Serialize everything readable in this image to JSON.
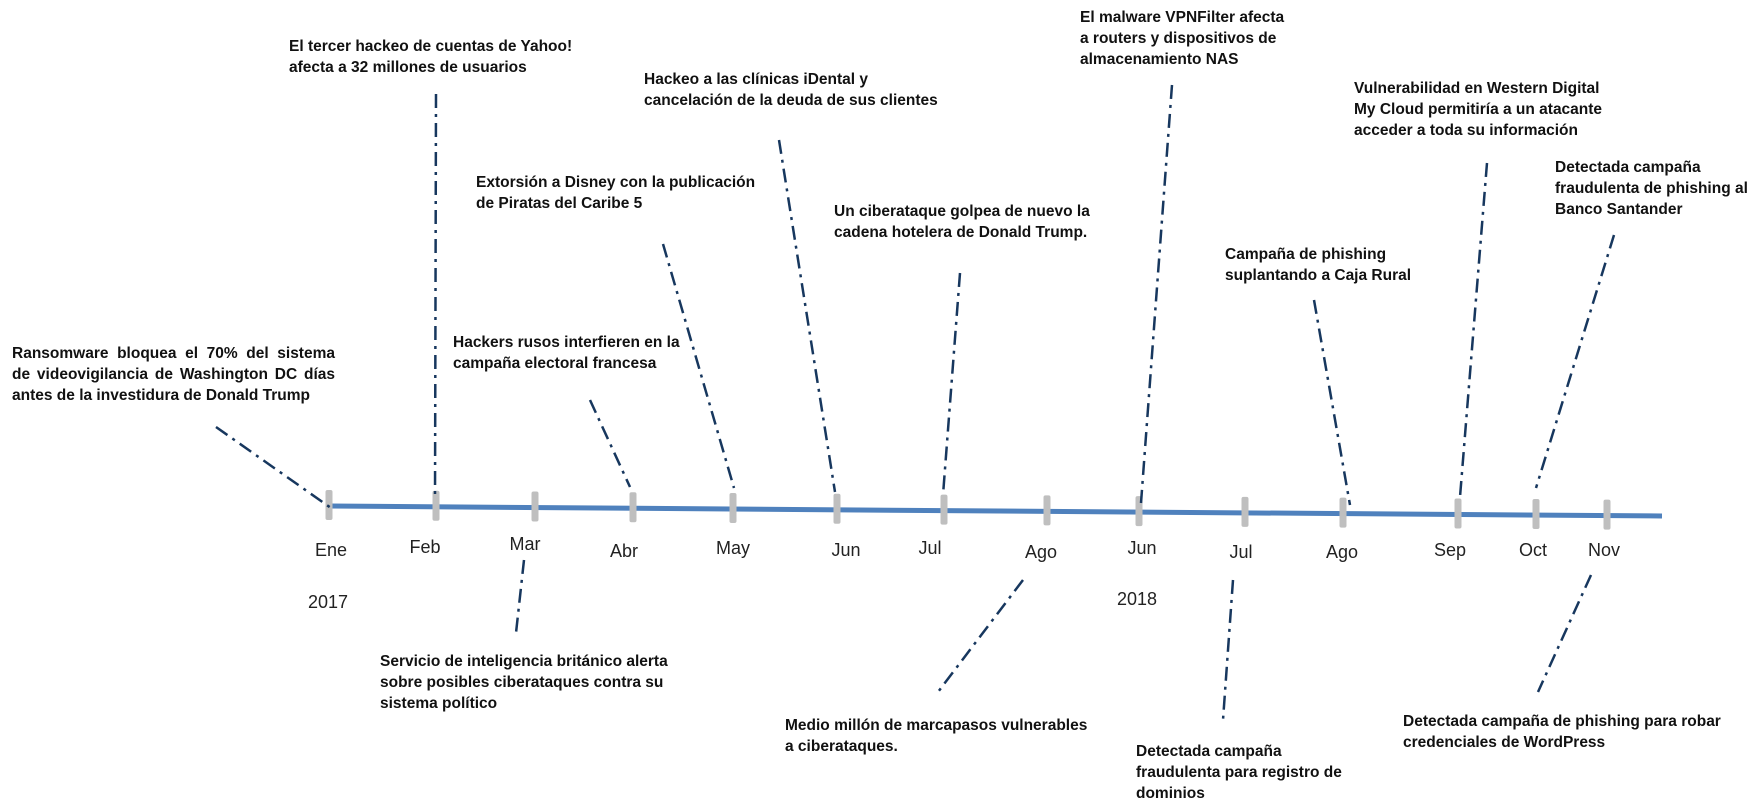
{
  "timeline": {
    "axis_color": "#4f81bd",
    "tick_color": "#bfbfbf",
    "connector_color": "#17375e",
    "months": [
      "Ene",
      "Feb",
      "Mar",
      "Abr",
      "May",
      "Jun",
      "Jul",
      "Ago",
      "Jun",
      "Jul",
      "Ago",
      "Sep",
      "Oct",
      "Nov"
    ],
    "years": [
      "2017",
      "2018"
    ],
    "events": [
      {
        "id": "washington-cctv",
        "text": "Ransomware bloquea el 70% del sistema de videovigilancia de Washington DC días antes de la investidura de Donald Trump"
      },
      {
        "id": "yahoo",
        "text": "El tercer hackeo de cuentas de Yahoo!\nafecta a 32 millones de usuarios"
      },
      {
        "id": "uk-intel",
        "text": "Servicio de inteligencia británico alerta\nsobre posibles ciberataques contra su\nsistema político"
      },
      {
        "id": "russian-hackers",
        "text": "Hackers rusos interfieren en la\ncampaña electoral francesa"
      },
      {
        "id": "disney",
        "text": "Extorsión a Disney con la publicación\nde Piratas del Caribe 5"
      },
      {
        "id": "idental",
        "text": "Hackeo a las clínicas iDental y\ncancelación de la deuda de sus clientes"
      },
      {
        "id": "trump-hotels",
        "text": "Un ciberataque golpea de nuevo la\ncadena hotelera de Donald Trump."
      },
      {
        "id": "pacemakers",
        "text": "Medio millón de marcapasos vulnerables\na ciberataques."
      },
      {
        "id": "vpnfilter",
        "text": "El malware VPNFilter afecta\na routers y dispositivos de\nalmacenamiento NAS"
      },
      {
        "id": "domains",
        "text": "Detectada campaña\nfraudulenta para registro de\ndominios"
      },
      {
        "id": "caja-rural",
        "text": "Campaña de phishing\nsuplantando a Caja Rural"
      },
      {
        "id": "western-digital",
        "text": "Vulnerabilidad en Western Digital\nMy Cloud permitiría a un atacante\nacceder a toda su información"
      },
      {
        "id": "santander",
        "text": "Detectada campaña\nfraudulenta de phishing al\nBanco Santander"
      },
      {
        "id": "wordpress",
        "text": "Detectada campaña de phishing para robar\ncredenciales de WordPress"
      }
    ]
  }
}
